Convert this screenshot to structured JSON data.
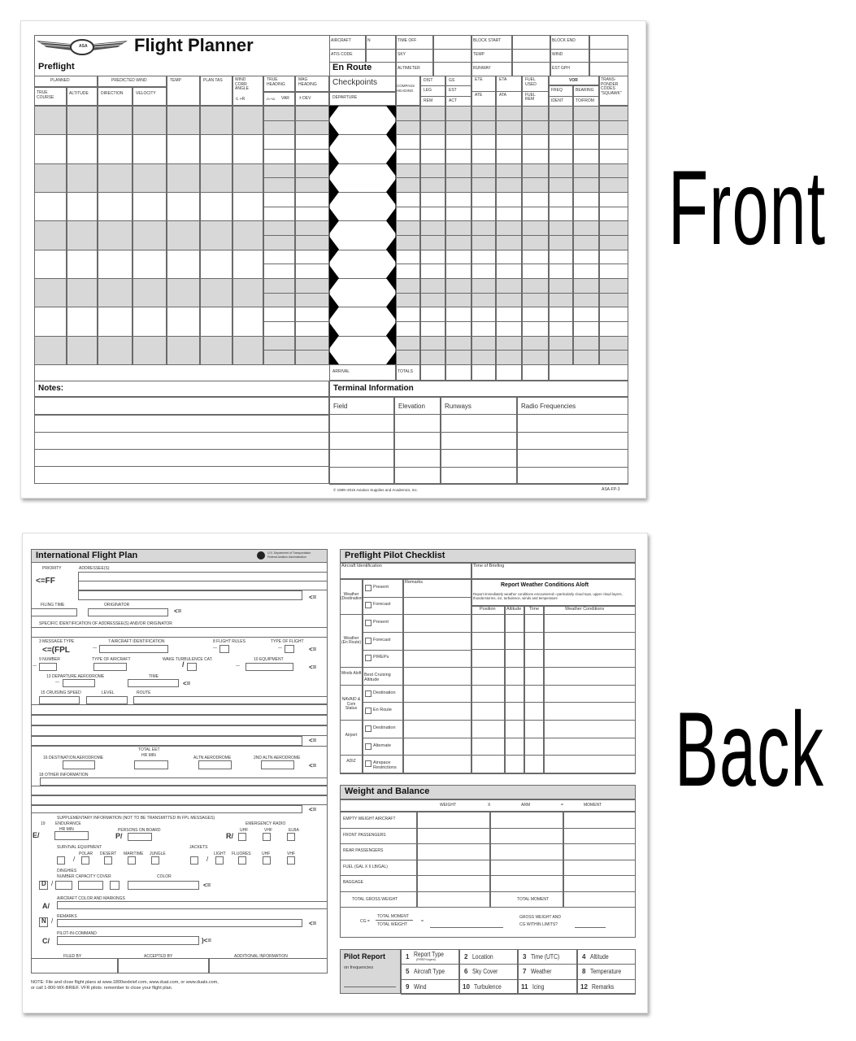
{
  "front": {
    "side_label": "Front",
    "logo_text": "ASA",
    "title": "Flight Planner",
    "preflight_heading": "Preflight",
    "preflight_headers": {
      "planned": "PLANNED",
      "predicted_wind": "PREDICTED WIND",
      "temp": "TEMP",
      "plan_tas": "PLAN TAS",
      "wind_corr_angle": "WIND CORR ANGLE",
      "true_heading": "TRUE HEADING",
      "mag_heading": "MAG HEADING",
      "true_course": "TRUE COURSE",
      "altitude": "ALTITUDE",
      "direction": "DIRECTION",
      "velocity": "VELOCITY",
      "lr": "-L +R",
      "we": "-E/+W",
      "var": "VAR",
      "dev": "± DEV"
    },
    "info": {
      "aircraft": "AIRCRAFT",
      "n": "N",
      "time_off": "TIME OFF",
      "block_start": "BLOCK START",
      "block_end": "BLOCK END",
      "atis": "ATIS CODE",
      "sky": "SKY",
      "temp": "TEMP",
      "wind": "WIND",
      "altimeter": "ALTIMETER",
      "runway": "RUNWAY",
      "est_gph": "EST GPH"
    },
    "en_route_heading": "En Route",
    "checkpoints": "Checkpoints",
    "departure": "DEPARTURE",
    "arrival": "ARRIVAL",
    "totals": "TOTALS",
    "en_route_headers": {
      "compass": "COMPASS HEADING",
      "dist": "DIST",
      "leg": "LEG",
      "rem": "REM",
      "gs": "GS",
      "est": "EST",
      "act": "ACT",
      "ete": "ETE",
      "ate": "ATE",
      "eta": "ETA",
      "ata": "ATA",
      "fuel_used": "FUEL USED",
      "fuel_rem": "FUEL REM",
      "vor": "VOR",
      "freq": "FREQ",
      "ident": "IDENT",
      "bearing": "BEARING",
      "to_from": "TO/FROM",
      "transponder": "TRANS-PONDER CODES \"SQUAWK\""
    },
    "notes_heading": "Notes:",
    "terminal_heading": "Terminal Information",
    "terminal_columns": [
      "Field",
      "Elevation",
      "Runways",
      "Radio Frequencies"
    ],
    "copyright": "© 1989–2015 Aviation Supplies and Academics, Inc.",
    "form_number": "ASA-FP-3"
  },
  "back": {
    "side_label": "Back",
    "flight_plan": {
      "title": "International Flight Plan",
      "agency_1": "U.S. Department of Transportation",
      "agency_2": "Federal Aviation Administration",
      "priority": "PRIORITY",
      "addressees": "ADDRESSEE(S)",
      "ff": "<=FF",
      "end": "<=",
      "close": ")<=",
      "filing_time": "FILING TIME",
      "originator": "ORIGINATOR",
      "specific": "SPECIFIC IDENTIFICATION OF ADDRESSEE(S) AND/OR ORIGINATOR",
      "msg_type": "3 MESSAGE TYPE",
      "fpl": "<=(FPL",
      "acid": "7 AIRCRAFT IDENTIFICATION",
      "rules": "8 FLIGHT RULES",
      "type_flight": "TYPE OF FLIGHT",
      "number": "9 NUMBER",
      "type_aircraft": "TYPE OF AIRCRAFT",
      "wake": "WAKE TURBULENCE CAT.",
      "equipment": "10 EQUIPMENT",
      "dep": "13 DEPARTURE AERODROME",
      "time": "TIME",
      "speed": "15 CRUISING SPEED",
      "level": "LEVEL",
      "route": "ROUTE",
      "eet": "TOTAL EET",
      "hr_min": "HR   MIN",
      "dest": "16 DESTINATION AERODROME",
      "altn": "ALTN AERODROME",
      "altn2": "2ND ALTN AERODROME",
      "other": "18 OTHER INFORMATION",
      "supp": "SUPPLEMENTARY INFORMATION (NOT TO BE TRANSMITTED IN FPL MESSAGES)",
      "n19": "19",
      "endurance": "ENDURANCE",
      "e": "E/",
      "persons": "PERSONS ON BOARD",
      "p": "P/",
      "emerg": "EMERGENCY RADIO",
      "r": "R/",
      "uhf": "UHF",
      "vhf": "VHF",
      "elba": "ELBA",
      "survival": "SURVIVAL EQUIPMENT",
      "polar": "POLAR",
      "desert": "DESERT",
      "maritime": "MARITIME",
      "jungle": "JUNGLE",
      "jackets": "JACKETS",
      "light": "LIGHT",
      "fluores": "FLUORES",
      "dinghies": "DINGHIES",
      "ncc": "NUMBER CAPACITY COVER",
      "color": "COLOR",
      "d": "D",
      "slash": "/",
      "dash": "—",
      "a": "A/",
      "markings": "AIRCRAFT COLOR AND MARKINGS",
      "n": "N",
      "remarks": "REMARKS",
      "c": "C/",
      "pic": "PILOT-IN-COMMAND",
      "filed": "FILED BY",
      "accepted": "ACCEPTED BY",
      "additional": "ADDITIONAL INFORMATION",
      "note_1": "NOTE: File and close flight plans at www.1800wxbrief.com, www.duat.com, or www.duats.com,",
      "note_2": "or call 1-800-WX-BRIEF. VFR pilots: remember to close your flight plan."
    },
    "checklist": {
      "title": "Preflight Pilot Checklist",
      "aircraft_id": "Aircraft Identification",
      "time_briefing": "Time of Briefing",
      "remarks": "Remarks",
      "categories": [
        "Weather (Destination)",
        "Weather (En Route)",
        "Winds Aloft",
        "NAVAID & Com Status",
        "Airport",
        "ADIZ"
      ],
      "items": [
        "Present",
        "Forecast",
        "Present",
        "Forecast",
        "PIREPs",
        "Best Cruising Altitude",
        "Destination",
        "En Route",
        "Destination",
        "Alternate",
        "Airspace Restrictions"
      ],
      "report_title": "Report Weather Conditions Aloft",
      "report_text": "Report immediately weather conditions encountered—particularly cloud tops, upper cloud layers, thunderstorms, ice, turbulence, winds and temperature",
      "report_columns": [
        "Position",
        "Altitude",
        "Time",
        "Weather Conditions"
      ]
    },
    "weight_balance": {
      "title": "Weight and Balance",
      "columns": [
        "WEIGHT",
        "x",
        "ARM",
        "=",
        "MOMENT"
      ],
      "rows": [
        "EMPTY WEIGHT AIRCRAFT",
        "FRONT PASSENGERS",
        "REAR PASSENGERS",
        "FUEL (GAL x 6 LB/GAL)",
        "BAGGAGE"
      ],
      "total_gross": "TOTAL GROSS WEIGHT",
      "total_moment": "TOTAL MOMENT",
      "cg": "CG =",
      "cg_num": "TOTAL MOMENT",
      "cg_den": "TOTAL WEIGHT",
      "equals": "=",
      "limits_1": "GROSS WEIGHT AND",
      "limits_2": "CG WITHIN LIMITS?"
    },
    "pilot_report": {
      "title": "Pilot Report",
      "subtitle": "on frequencies",
      "items": [
        [
          "1",
          "Report Type"
        ],
        [
          "2",
          "Location"
        ],
        [
          "3",
          "Time (UTC)"
        ],
        [
          "4",
          "Altitude"
        ],
        [
          "5",
          "Aircraft Type"
        ],
        [
          "6",
          "Sky Cover"
        ],
        [
          "7",
          "Weather"
        ],
        [
          "8",
          "Temperature"
        ],
        [
          "9",
          "Wind"
        ],
        [
          "10",
          "Turbulence"
        ],
        [
          "11",
          "Icing"
        ],
        [
          "12",
          "Remarks"
        ]
      ],
      "report_type_sub": "(PIREP/urgent)"
    }
  },
  "colors": {
    "shade": "#d8d8d8",
    "line": "#6a6a6a"
  }
}
